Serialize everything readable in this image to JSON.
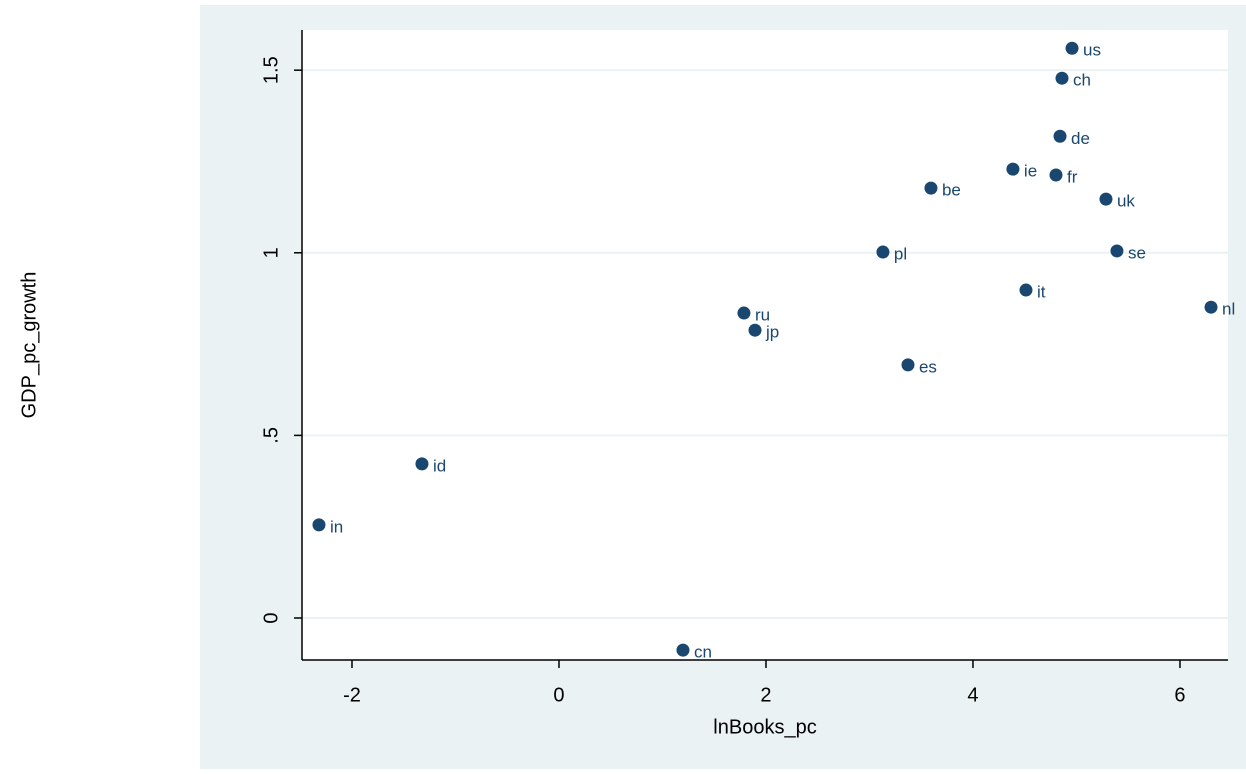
{
  "chart_data": {
    "type": "scatter",
    "x_label": "lnBooks_pc",
    "y_label": "GDP_pc_growth",
    "x": [
      4.957,
      4.86,
      4.841,
      4.386,
      4.802,
      3.594,
      5.285,
      3.13,
      5.391,
      4.512,
      6.3,
      1.787,
      1.894,
      3.372,
      -1.324,
      -2.319,
      1.198
    ],
    "values": [
      1.56,
      1.478,
      1.319,
      1.229,
      1.213,
      1.177,
      1.147,
      1.002,
      1.005,
      0.898,
      0.851,
      0.835,
      0.788,
      0.693,
      0.422,
      0.255,
      -0.088
    ],
    "labels": [
      "us",
      "ch",
      "de",
      "ie",
      "fr",
      "be",
      "uk",
      "pl",
      "se",
      "it",
      "nl",
      "ru",
      "jp",
      "es",
      "id",
      "in",
      "cn"
    ],
    "color": "#1a476f",
    "xlim": [
      -2.483,
      6.464
    ],
    "ylim": [
      -0.115,
      1.61
    ],
    "xticks": [
      -2,
      0,
      2,
      4,
      6
    ],
    "yticks": [
      0,
      {
        "value": 0.5,
        "label": ".5"
      },
      1,
      1.5
    ],
    "grid": true
  }
}
